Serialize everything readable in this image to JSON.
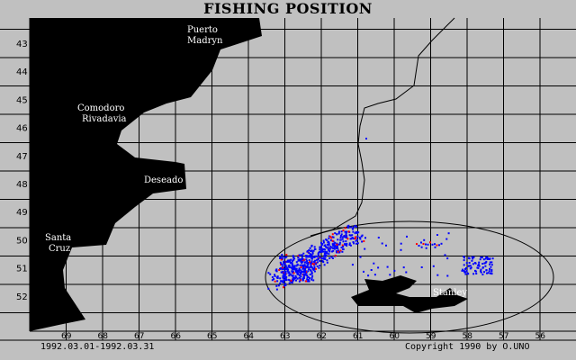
{
  "title": "FISHING POSITION",
  "date_range": "1992.03.01-1992.03.31",
  "copyright": "Copyright 1990 by O.UNO",
  "lat_labels": [
    "43",
    "44",
    "45",
    "46",
    "47",
    "48",
    "49",
    "50",
    "51",
    "52"
  ],
  "lon_labels": [
    "69",
    "68",
    "67",
    "66",
    "65",
    "64",
    "63",
    "62",
    "61",
    "60",
    "59",
    "58",
    "57",
    "56"
  ],
  "places": [
    {
      "key": "puerto-madryn",
      "lines": [
        "Puerto",
        "Madryn"
      ],
      "color": "#ffffff"
    },
    {
      "key": "comodoro-rivadavia",
      "lines": [
        "Comodoro",
        "Rivadavia"
      ],
      "color": "#ffffff"
    },
    {
      "key": "deseado",
      "lines": [
        "Deseado"
      ],
      "color": "#ffffff"
    },
    {
      "key": "santa-cruz",
      "lines": [
        "Santa",
        "Cruz"
      ],
      "color": "#ffffff"
    },
    {
      "key": "stanley",
      "lines": [
        "Stanley"
      ],
      "color": "#ffffff"
    }
  ],
  "colors": {
    "background": "#c0c0c0",
    "grid": "#000000",
    "land": "#000000",
    "fishing_points": "#0000ff",
    "fishing_points_alt": "#ff0000"
  }
}
